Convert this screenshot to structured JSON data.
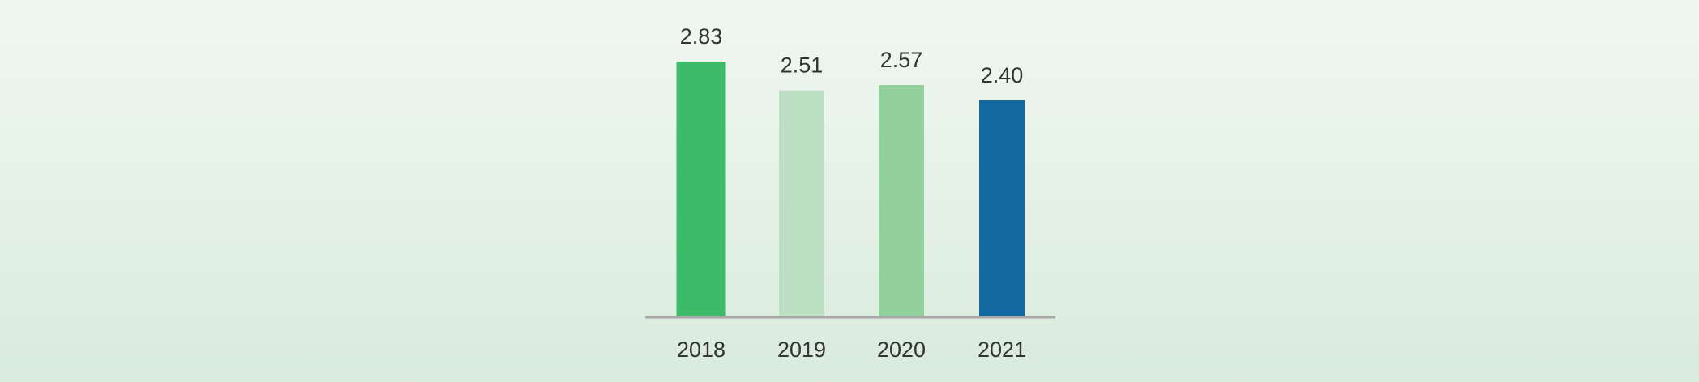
{
  "chart_data": {
    "type": "bar",
    "title": "",
    "xlabel": "",
    "ylabel": "",
    "categories": [
      "2018",
      "2019",
      "2020",
      "2021"
    ],
    "values": [
      2.83,
      2.51,
      2.57,
      2.4
    ],
    "value_labels": [
      "2.83",
      "2.51",
      "2.57",
      "2.40"
    ],
    "bar_colors": [
      "#3dba6a",
      "#bde0c5",
      "#92d09d",
      "#1468a0"
    ],
    "axis_color": "#a8a8a8",
    "ylim": [
      0,
      2.83
    ],
    "grid": false,
    "legend": "none"
  }
}
